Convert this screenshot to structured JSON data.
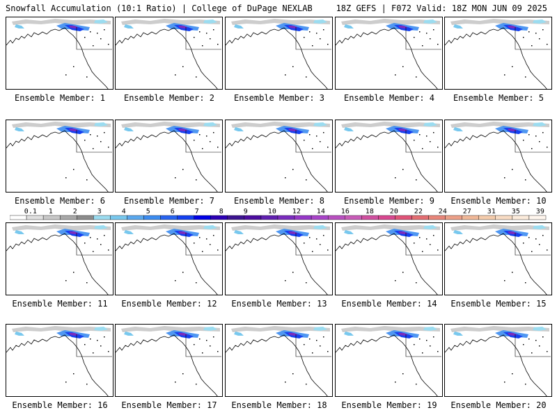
{
  "header": {
    "left": "Snowfall Accumulation (10:1 Ratio) | College of DuPage NEXLAB",
    "right": "18Z GEFS | F072 Valid: 18Z MON JUN 09 2025"
  },
  "chart_data": {
    "type": "heatmap",
    "title": "Snowfall Accumulation (10:1 Ratio)",
    "panels": [
      "Ensemble Member: 1",
      "Ensemble Member: 2",
      "Ensemble Member: 3",
      "Ensemble Member: 4",
      "Ensemble Member: 5",
      "Ensemble Member: 6",
      "Ensemble Member: 7",
      "Ensemble Member: 8",
      "Ensemble Member: 9",
      "Ensemble Member: 10",
      "Ensemble Member: 11",
      "Ensemble Member: 12",
      "Ensemble Member: 13",
      "Ensemble Member: 14",
      "Ensemble Member: 15",
      "Ensemble Member: 16",
      "Ensemble Member: 17",
      "Ensemble Member: 18",
      "Ensemble Member: 19",
      "Ensemble Member: 20"
    ],
    "colorbar": {
      "labels": [
        "0.1",
        "1",
        "2",
        "3",
        "4",
        "5",
        "6",
        "7",
        "8",
        "9",
        "10",
        "12",
        "14",
        "16",
        "18",
        "20",
        "22",
        "24",
        "27",
        "31",
        "35",
        "39"
      ],
      "colors": [
        "#ffffff",
        "#e0e0e0",
        "#c8c8c8",
        "#a8a8a8",
        "#8c8c8c",
        "#9bdcf0",
        "#78c8ee",
        "#5aa8ee",
        "#3c8cf0",
        "#2864f0",
        "#1440f0",
        "#0000e6",
        "#2c00b4",
        "#3c1490",
        "#4c0ca0",
        "#6020b0",
        "#7a2cbe",
        "#9638c8",
        "#a844c8",
        "#b850c0",
        "#c85cb8",
        "#d050a0",
        "#d84890",
        "#e05478",
        "#e46e72",
        "#e8867a",
        "#eca088",
        "#f0b898",
        "#f4ccac",
        "#f8dcc4",
        "#fcecdc",
        "#fff6ee"
      ]
    }
  }
}
